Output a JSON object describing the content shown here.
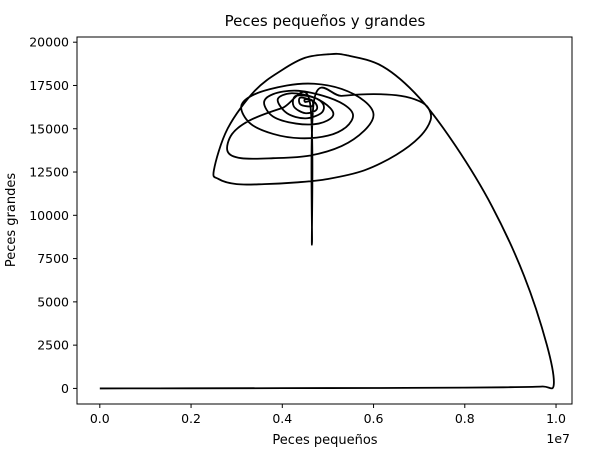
{
  "chart_data": {
    "type": "line",
    "title": "Peces pequeños y grandes",
    "xlabel": "Peces pequeños",
    "ylabel": "Peces grandes",
    "x_offset_label": "1e7",
    "xlim": [
      -0.05,
      1.035
    ],
    "ylim": [
      -900,
      20300
    ],
    "x_ticks": [
      0.0,
      0.2,
      0.4,
      0.6,
      0.8,
      1.0
    ],
    "x_tick_labels": [
      "0.0",
      "0.2",
      "0.4",
      "0.6",
      "0.8",
      "1.0"
    ],
    "y_ticks": [
      0,
      2500,
      5000,
      7500,
      10000,
      12500,
      15000,
      17500,
      20000
    ],
    "y_tick_labels": [
      "0",
      "2500",
      "5000",
      "7500",
      "10000",
      "12500",
      "15000",
      "17500",
      "20000"
    ],
    "grid": false,
    "line_color": "#000000",
    "series": [
      {
        "x": [
          0.0,
          0.2,
          0.4,
          0.6,
          0.8,
          0.9,
          0.97,
          0.995,
          0.98,
          0.93,
          0.86,
          0.78,
          0.7,
          0.62,
          0.54,
          0.5,
          0.45,
          0.4,
          0.34,
          0.28,
          0.25,
          0.26,
          0.3,
          0.36,
          0.43,
          0.5,
          0.58,
          0.65,
          0.7,
          0.725,
          0.72,
          0.7,
          0.66,
          0.6,
          0.53,
          0.47,
          0.465,
          0.46,
          0.4,
          0.33,
          0.29,
          0.28,
          0.31,
          0.38,
          0.46,
          0.53,
          0.58,
          0.6,
          0.58,
          0.53,
          0.47,
          0.41,
          0.34,
          0.31,
          0.33,
          0.38,
          0.44,
          0.5,
          0.54,
          0.555,
          0.535,
          0.49,
          0.43,
          0.38,
          0.36,
          0.38,
          0.43,
          0.48,
          0.51,
          0.505,
          0.47,
          0.42,
          0.39,
          0.41,
          0.45,
          0.485,
          0.49,
          0.47,
          0.43,
          0.425,
          0.45,
          0.475,
          0.47,
          0.44,
          0.44,
          0.465,
          0.465,
          0.45,
          0.45,
          0.46
        ],
        "y": [
          0,
          5,
          15,
          25,
          45,
          70,
          110,
          200,
          2500,
          6500,
          10500,
          14000,
          16800,
          18600,
          19250,
          19300,
          19100,
          18400,
          17200,
          15000,
          12600,
          12100,
          11800,
          11800,
          11900,
          12100,
          12600,
          13500,
          14500,
          15500,
          16200,
          16600,
          16900,
          17000,
          16900,
          16700,
          8300,
          16600,
          16200,
          15500,
          14700,
          13700,
          13300,
          13300,
          13450,
          14000,
          14900,
          15800,
          16600,
          17300,
          17600,
          17500,
          17000,
          16300,
          15300,
          14700,
          14450,
          14600,
          15100,
          15800,
          16400,
          16900,
          17200,
          17000,
          16500,
          15700,
          15300,
          15300,
          15700,
          16200,
          16800,
          17050,
          16700,
          15900,
          15600,
          15900,
          16400,
          16800,
          16900,
          16300,
          15900,
          16100,
          16550,
          16800,
          16400,
          16300,
          16650,
          16700,
          16550,
          16600
        ]
      }
    ]
  }
}
